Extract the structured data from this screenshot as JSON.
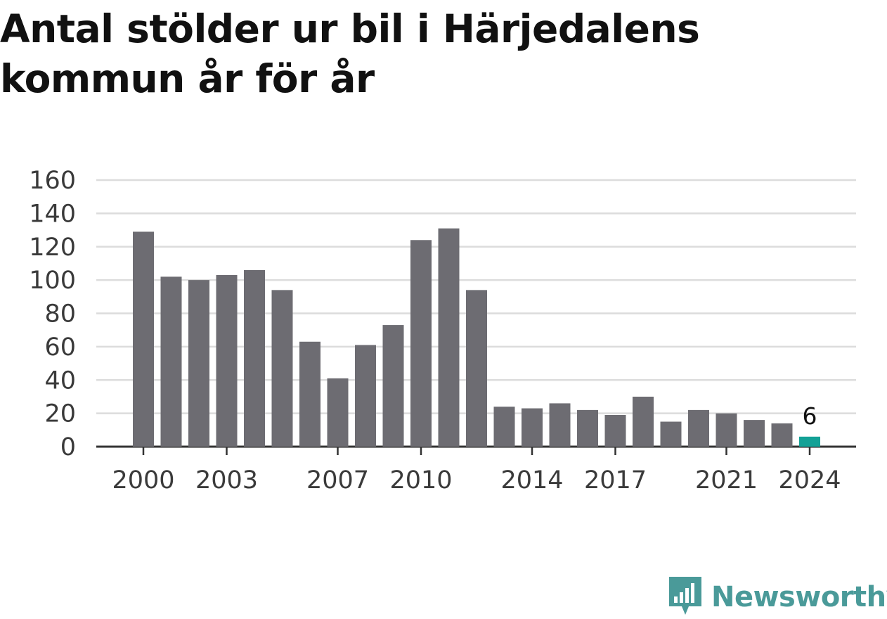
{
  "title": "Antal stölder ur bil i Härjedalens kommun år för år",
  "brand": {
    "name": "Newsworthy",
    "color": "#4a9a99"
  },
  "colors": {
    "bar": "#6d6c72",
    "highlight": "#13a196",
    "grid": "#dcdcdc",
    "axis": "#333333"
  },
  "chart_data": {
    "type": "bar",
    "title": "Antal stölder ur bil i Härjedalens kommun år för år",
    "xlabel": "",
    "ylabel": "",
    "categories": [
      "2000",
      "2001",
      "2002",
      "2003",
      "2004",
      "2005",
      "2006",
      "2007",
      "2008",
      "2009",
      "2010",
      "2011",
      "2012",
      "2013",
      "2014",
      "2015",
      "2016",
      "2017",
      "2018",
      "2019",
      "2020",
      "2021",
      "2022",
      "2023",
      "2024"
    ],
    "values": [
      129,
      102,
      100,
      103,
      106,
      94,
      63,
      41,
      61,
      73,
      124,
      131,
      94,
      24,
      23,
      26,
      22,
      19,
      30,
      15,
      22,
      20,
      16,
      14,
      6
    ],
    "x_tick_labels": [
      "2000",
      "2003",
      "2007",
      "2010",
      "2014",
      "2017",
      "2021",
      "2024"
    ],
    "y_ticks": [
      0,
      20,
      40,
      60,
      80,
      100,
      120,
      140,
      160
    ],
    "ylim": [
      0,
      160
    ],
    "grid": true,
    "highlight": {
      "category": "2024",
      "label": "6"
    }
  }
}
